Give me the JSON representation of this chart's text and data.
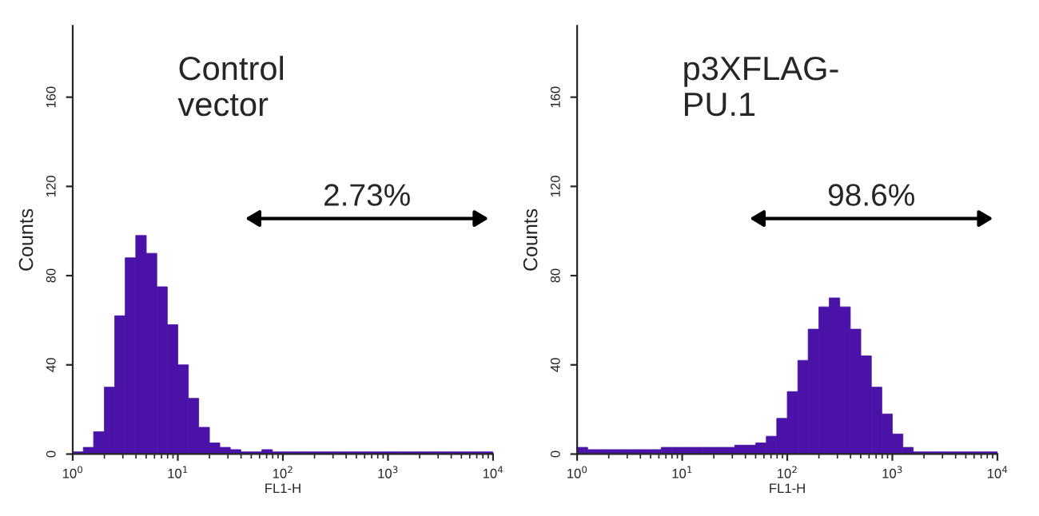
{
  "chart_data": [
    {
      "type": "histogram",
      "title": "Control\nvector",
      "xlabel": "FL1-H",
      "ylabel": "Counts",
      "log": "x",
      "color": "#4b12a8",
      "bins": [
        1,
        1.26,
        1.58,
        2,
        2.51,
        3.16,
        3.98,
        5.01,
        6.31,
        7.94,
        10,
        12.6,
        15.8,
        20,
        25.1,
        31.6,
        39.8,
        50.1,
        63.1,
        79.4,
        100,
        126,
        158,
        200,
        251,
        316,
        398,
        501,
        631,
        794,
        1000,
        1260,
        1580,
        2000,
        2510,
        3160,
        3980,
        5010,
        6310,
        7940,
        10000
      ],
      "values": [
        1,
        3,
        10,
        30,
        62,
        88,
        98,
        90,
        75,
        58,
        40,
        25,
        12,
        5,
        3,
        2,
        1,
        1,
        2,
        1,
        1,
        1,
        1,
        1,
        1,
        1,
        1,
        1,
        1,
        1,
        1,
        1,
        1,
        1,
        1,
        1,
        1,
        1,
        1,
        1
      ],
      "xlim": [
        1,
        10000
      ],
      "xticks": [
        {
          "value": 1,
          "label": "10$^{0}$"
        },
        {
          "value": 10,
          "label": "10$^{1}$"
        },
        {
          "value": 100,
          "label": "10$^{2}$"
        },
        {
          "value": 1000,
          "label": "10$^{3}$"
        },
        {
          "value": 10000,
          "label": "10$^{4}$"
        }
      ],
      "ylim": [
        0,
        192
      ],
      "yticks": [
        0,
        40,
        80,
        120,
        160
      ],
      "annotations": [
        "2.73%"
      ]
    },
    {
      "type": "histogram",
      "title": "p3XFLAG-\nPU.1",
      "xlabel": "FL1-H",
      "ylabel": "Counts",
      "log": "x",
      "color": "#4b12a8",
      "bins": [
        1,
        1.26,
        1.58,
        2,
        2.51,
        3.16,
        3.98,
        5.01,
        6.31,
        7.94,
        10,
        12.6,
        15.8,
        20,
        25.1,
        31.6,
        39.8,
        50.1,
        63.1,
        79.4,
        100,
        126,
        158,
        200,
        251,
        316,
        398,
        501,
        631,
        794,
        1000,
        1260,
        1580,
        2000,
        2510,
        3160,
        3980,
        5010,
        6310,
        7940,
        10000
      ],
      "values": [
        3,
        2,
        2,
        2,
        2,
        2,
        2,
        2,
        3,
        3,
        3,
        3,
        3,
        3,
        3,
        4,
        4,
        5,
        8,
        16,
        28,
        42,
        56,
        66,
        70,
        66,
        56,
        44,
        30,
        18,
        9,
        3,
        1,
        1,
        1,
        1,
        1,
        1,
        1,
        1
      ],
      "xlim": [
        1,
        10000
      ],
      "xticks": [
        {
          "value": 1,
          "label": "10$^{0}$"
        },
        {
          "value": 10,
          "label": "10$^{1}$"
        },
        {
          "value": 100,
          "label": "10$^{2}$"
        },
        {
          "value": 1000,
          "label": "10$^{3}$"
        },
        {
          "value": 10000,
          "label": "10$^{4}$"
        }
      ],
      "ylim": [
        0,
        192
      ],
      "yticks": [
        0,
        40,
        80,
        120,
        160
      ],
      "annotations": [
        "98.6%"
      ]
    }
  ]
}
